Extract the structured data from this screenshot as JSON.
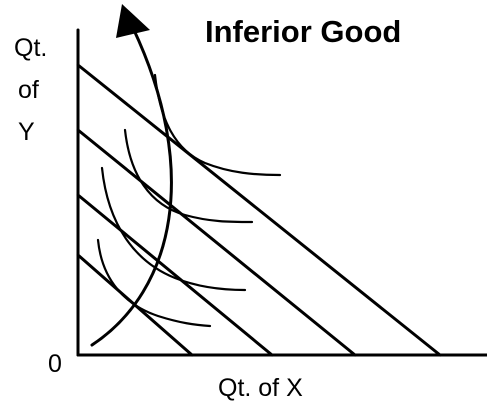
{
  "title": "Inferior Good",
  "y_axis_label": [
    "Qt.",
    "of",
    "Y"
  ],
  "origin_label": "0",
  "x_axis_label": "Qt. of X"
}
